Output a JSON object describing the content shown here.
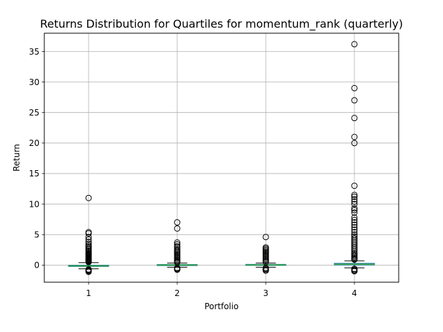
{
  "chart_data": {
    "type": "boxplot",
    "title": "Returns Distribution for Quartiles for momentum_rank (quarterly)",
    "xlabel": "Portfolio",
    "ylabel": "Return",
    "categories": [
      "1",
      "2",
      "3",
      "4"
    ],
    "ylim": [
      -2.8,
      38.0
    ],
    "yticks": [
      0,
      5,
      10,
      15,
      20,
      25,
      30,
      35
    ],
    "grid": true,
    "colors": {
      "box": "#1f77b4",
      "median": "#2ca02c",
      "whisker": "#000000",
      "grid": "#b0b0b0",
      "flier": "#000000"
    },
    "boxes": [
      {
        "category": "1",
        "whislo": -0.6,
        "q1": -0.22,
        "med": -0.12,
        "q3": -0.02,
        "whishi": 0.4,
        "fliers": [
          11.0,
          5.4,
          5.2,
          4.6,
          4.2,
          3.8,
          3.5,
          3.2,
          3.0,
          2.8,
          2.6,
          2.4,
          2.2,
          2.0,
          1.9,
          1.8,
          1.7,
          1.6,
          1.5,
          1.4,
          1.3,
          1.2,
          1.1,
          1.0,
          0.9,
          0.8,
          0.7,
          0.6,
          0.5,
          -0.7,
          -0.8,
          -0.9,
          -1.0,
          -1.1
        ]
      },
      {
        "category": "2",
        "whislo": -0.35,
        "q1": -0.08,
        "med": 0.0,
        "q3": 0.1,
        "whishi": 0.35,
        "fliers": [
          7.0,
          6.0,
          3.7,
          3.4,
          3.1,
          2.9,
          2.6,
          2.4,
          2.2,
          2.0,
          1.8,
          1.6,
          1.4,
          1.2,
          1.0,
          0.8,
          0.6,
          0.45,
          -0.45,
          -0.55,
          -0.65,
          -0.75
        ]
      },
      {
        "category": "3",
        "whislo": -0.35,
        "q1": -0.05,
        "med": 0.03,
        "q3": 0.12,
        "whishi": 0.35,
        "fliers": [
          4.6,
          2.9,
          2.7,
          2.5,
          2.3,
          2.1,
          1.9,
          1.7,
          1.5,
          1.3,
          1.1,
          0.9,
          0.7,
          0.5,
          -0.45,
          -0.6,
          -0.75,
          -0.9
        ]
      },
      {
        "category": "4",
        "whislo": -0.45,
        "q1": 0.02,
        "med": 0.15,
        "q3": 0.3,
        "whishi": 0.7,
        "fliers": [
          36.2,
          29.0,
          27.0,
          24.1,
          21.0,
          20.0,
          13.0,
          11.5,
          11.2,
          10.8,
          10.4,
          10.0,
          9.3,
          9.0,
          8.6,
          7.8,
          7.4,
          7.0,
          6.6,
          6.2,
          5.8,
          5.4,
          5.0,
          4.7,
          4.4,
          4.1,
          3.8,
          3.5,
          3.2,
          2.9,
          2.6,
          2.3,
          2.0,
          1.8,
          1.6,
          1.4,
          1.2,
          1.0,
          0.9,
          -0.6,
          -0.75,
          -0.9,
          -1.0
        ]
      }
    ]
  }
}
